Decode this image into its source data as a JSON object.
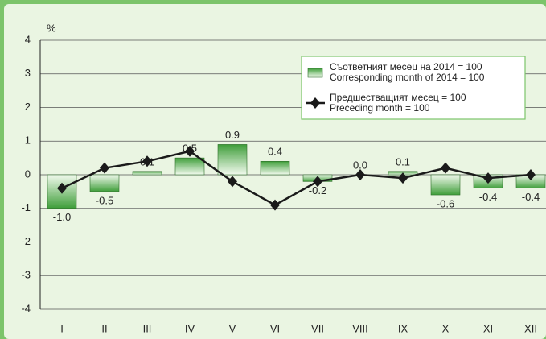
{
  "chart_data": {
    "type": "bar_line",
    "y_label": "%",
    "categories": [
      "I",
      "II",
      "III",
      "IV",
      "V",
      "VI",
      "VII",
      "VIII",
      "IX",
      "X",
      "XI",
      "XII"
    ],
    "series": [
      {
        "name": "Съответният месец на 2014 = 100\nCorresponding month of 2014 = 100",
        "type": "bar",
        "color": "#3f9e3a",
        "values": [
          -1.0,
          -0.5,
          0.1,
          0.5,
          0.9,
          0.4,
          -0.2,
          0.0,
          0.1,
          -0.6,
          -0.4,
          -0.4
        ],
        "value_labels": [
          "-1.0",
          "-0.5",
          "0.1",
          "0.5",
          "0.9",
          "0.4",
          "-0.2",
          "0.0",
          "0.1",
          "-0.6",
          "-0.4",
          "-0.4"
        ]
      },
      {
        "name": "Предшестващият месец = 100\nPreceding month = 100",
        "type": "line",
        "color": "#1a1a1a",
        "values": [
          -0.4,
          0.2,
          0.4,
          0.7,
          -0.2,
          -0.9,
          -0.2,
          0.0,
          -0.1,
          0.2,
          -0.1,
          0.0
        ]
      }
    ],
    "ylim": [
      -4,
      4
    ],
    "yticks": [
      -4,
      -3,
      -2,
      -1,
      0,
      1,
      2,
      3,
      4
    ],
    "grid": true
  }
}
